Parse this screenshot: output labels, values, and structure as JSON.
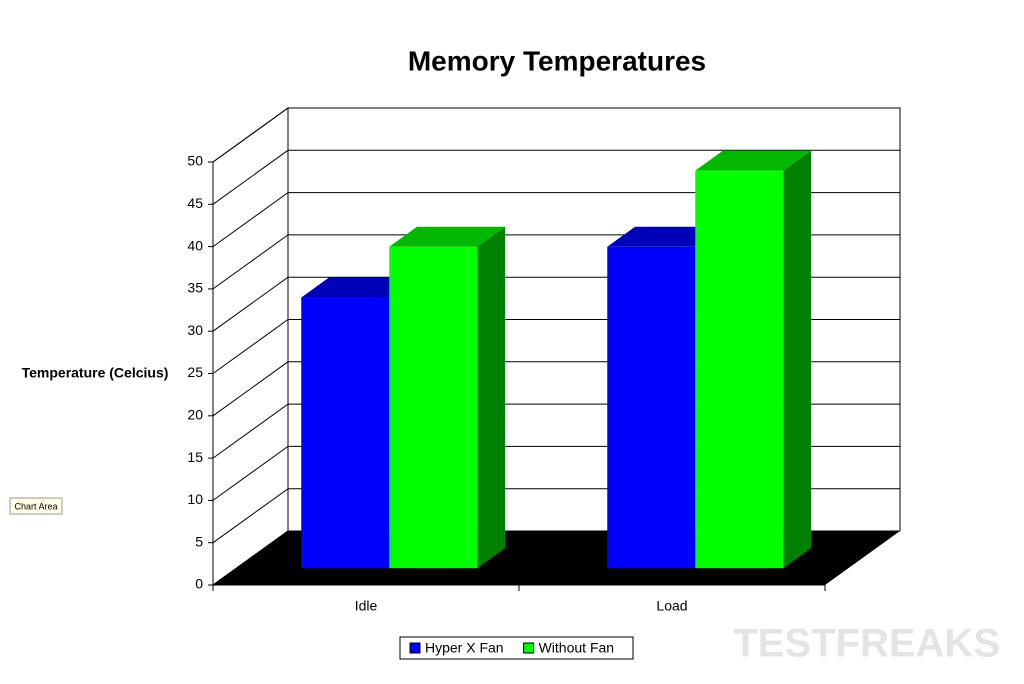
{
  "chart_data": {
    "type": "bar3d",
    "title": "Memory Temperatures",
    "y_label": "Temperature (Celcius)",
    "categories": [
      "Idle",
      "Load"
    ],
    "series": [
      {
        "name": "Hyper X Fan",
        "color": "#0000ff",
        "values": [
          32,
          38
        ]
      },
      {
        "name": "Without Fan",
        "color": "#00ff00",
        "values": [
          38,
          47
        ]
      }
    ],
    "ylim": [
      0,
      50
    ],
    "yticks": [
      0,
      5,
      10,
      15,
      20,
      25,
      30,
      35,
      40,
      45,
      50
    ],
    "grid": true,
    "legend": "bottom",
    "tooltip": "Chart Area",
    "watermark": "TESTFREAKS"
  }
}
